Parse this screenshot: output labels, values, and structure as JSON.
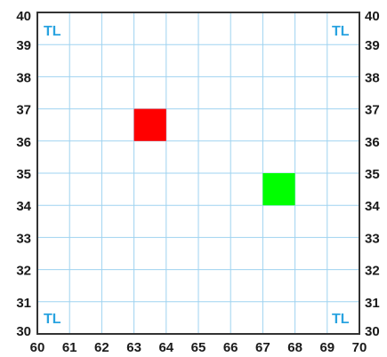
{
  "map": {
    "x_range": [
      60,
      70
    ],
    "y_range": [
      30,
      40
    ],
    "x_ticks": [
      "60",
      "61",
      "62",
      "63",
      "64",
      "65",
      "66",
      "67",
      "68",
      "69",
      "70"
    ],
    "y_ticks": [
      "30",
      "31",
      "32",
      "33",
      "34",
      "35",
      "36",
      "37",
      "38",
      "39",
      "40"
    ],
    "gridline_step": 1,
    "colors": {
      "grid": "#9fd3f0",
      "frame": "#333333",
      "corner_label": "#29a3e0"
    },
    "corner_labels": {
      "top_left": "TL",
      "top_right": "TL",
      "bottom_left": "TL",
      "bottom_right": "TL"
    },
    "markers": [
      {
        "name": "red-square",
        "color": "#ff0000",
        "x_from": 63.0,
        "x_to": 64.0,
        "y_from": 36.0,
        "y_to": 37.0
      },
      {
        "name": "green-square",
        "color": "#00ff00",
        "x_from": 67.0,
        "x_to": 68.0,
        "y_from": 34.0,
        "y_to": 35.0
      }
    ]
  }
}
